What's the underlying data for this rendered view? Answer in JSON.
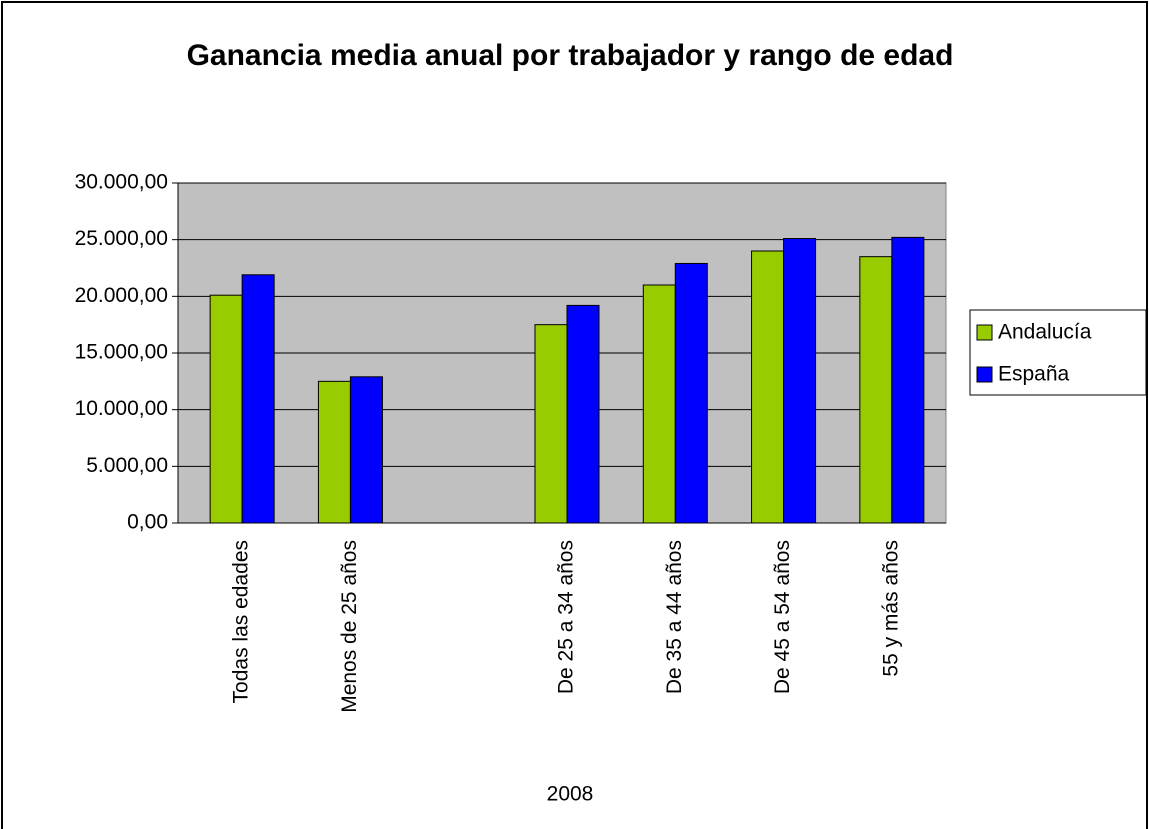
{
  "chart_data": {
    "type": "bar",
    "title": "Ganancia media anual por trabajador y rango de edad",
    "xlabel": "2008",
    "categories": [
      "Todas las edades",
      "Menos de 25 años",
      null,
      "De 25 a 34 años",
      "De 35 a 44 años",
      "De 45 a 54 años",
      "55 y más años"
    ],
    "series": [
      {
        "name": "Andalucía",
        "color": "#99cc00",
        "values": [
          20100,
          12500,
          null,
          17500,
          21000,
          24000,
          23500
        ]
      },
      {
        "name": "España",
        "color": "#0000ff",
        "values": [
          21900,
          12900,
          null,
          19200,
          22900,
          25100,
          25200
        ]
      }
    ],
    "ylim": [
      0,
      30000
    ],
    "yticks": [
      {
        "value": 0,
        "label": "0,00"
      },
      {
        "value": 5000,
        "label": "5.000,00"
      },
      {
        "value": 10000,
        "label": "10.000,00"
      },
      {
        "value": 15000,
        "label": "15.000,00"
      },
      {
        "value": 20000,
        "label": "20.000,00"
      },
      {
        "value": 25000,
        "label": "25.000,00"
      },
      {
        "value": 30000,
        "label": "30.000,00"
      }
    ],
    "grid": true,
    "legend": "right",
    "plot_background": "#c0c0c0"
  }
}
